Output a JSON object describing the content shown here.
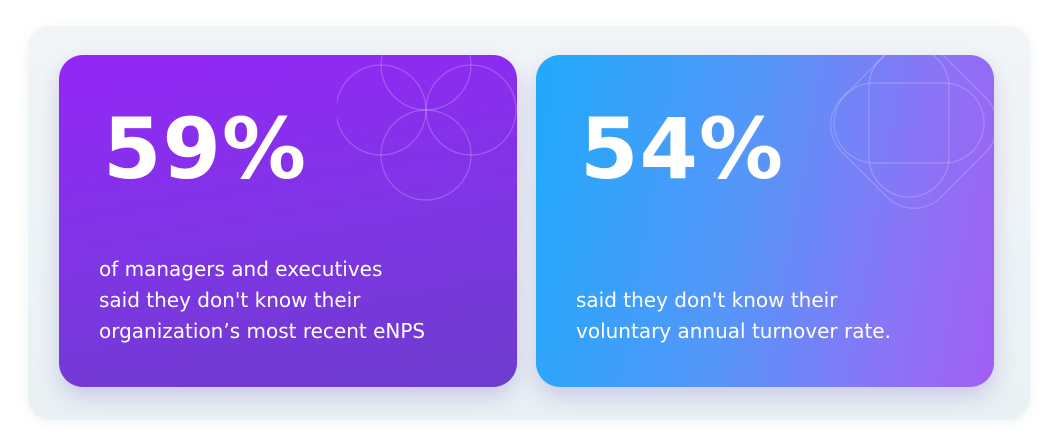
{
  "cards": [
    {
      "stat": "59%",
      "description_lines": [
        "of managers and executives",
        "said they don't know their",
        "organization’s most recent eNPS"
      ],
      "decoration_icon": "four-circles-pattern-icon",
      "gradient": [
        "#9426f6",
        "#6d3ccd"
      ]
    },
    {
      "stat": "54%",
      "description_lines": [
        "said they don't know their",
        "voluntary annual turnover rate."
      ],
      "decoration_icon": "rounded-squares-pattern-icon",
      "gradient": [
        "#20aafb",
        "#a15ff3"
      ]
    }
  ],
  "panel_color": "#eef4f6"
}
